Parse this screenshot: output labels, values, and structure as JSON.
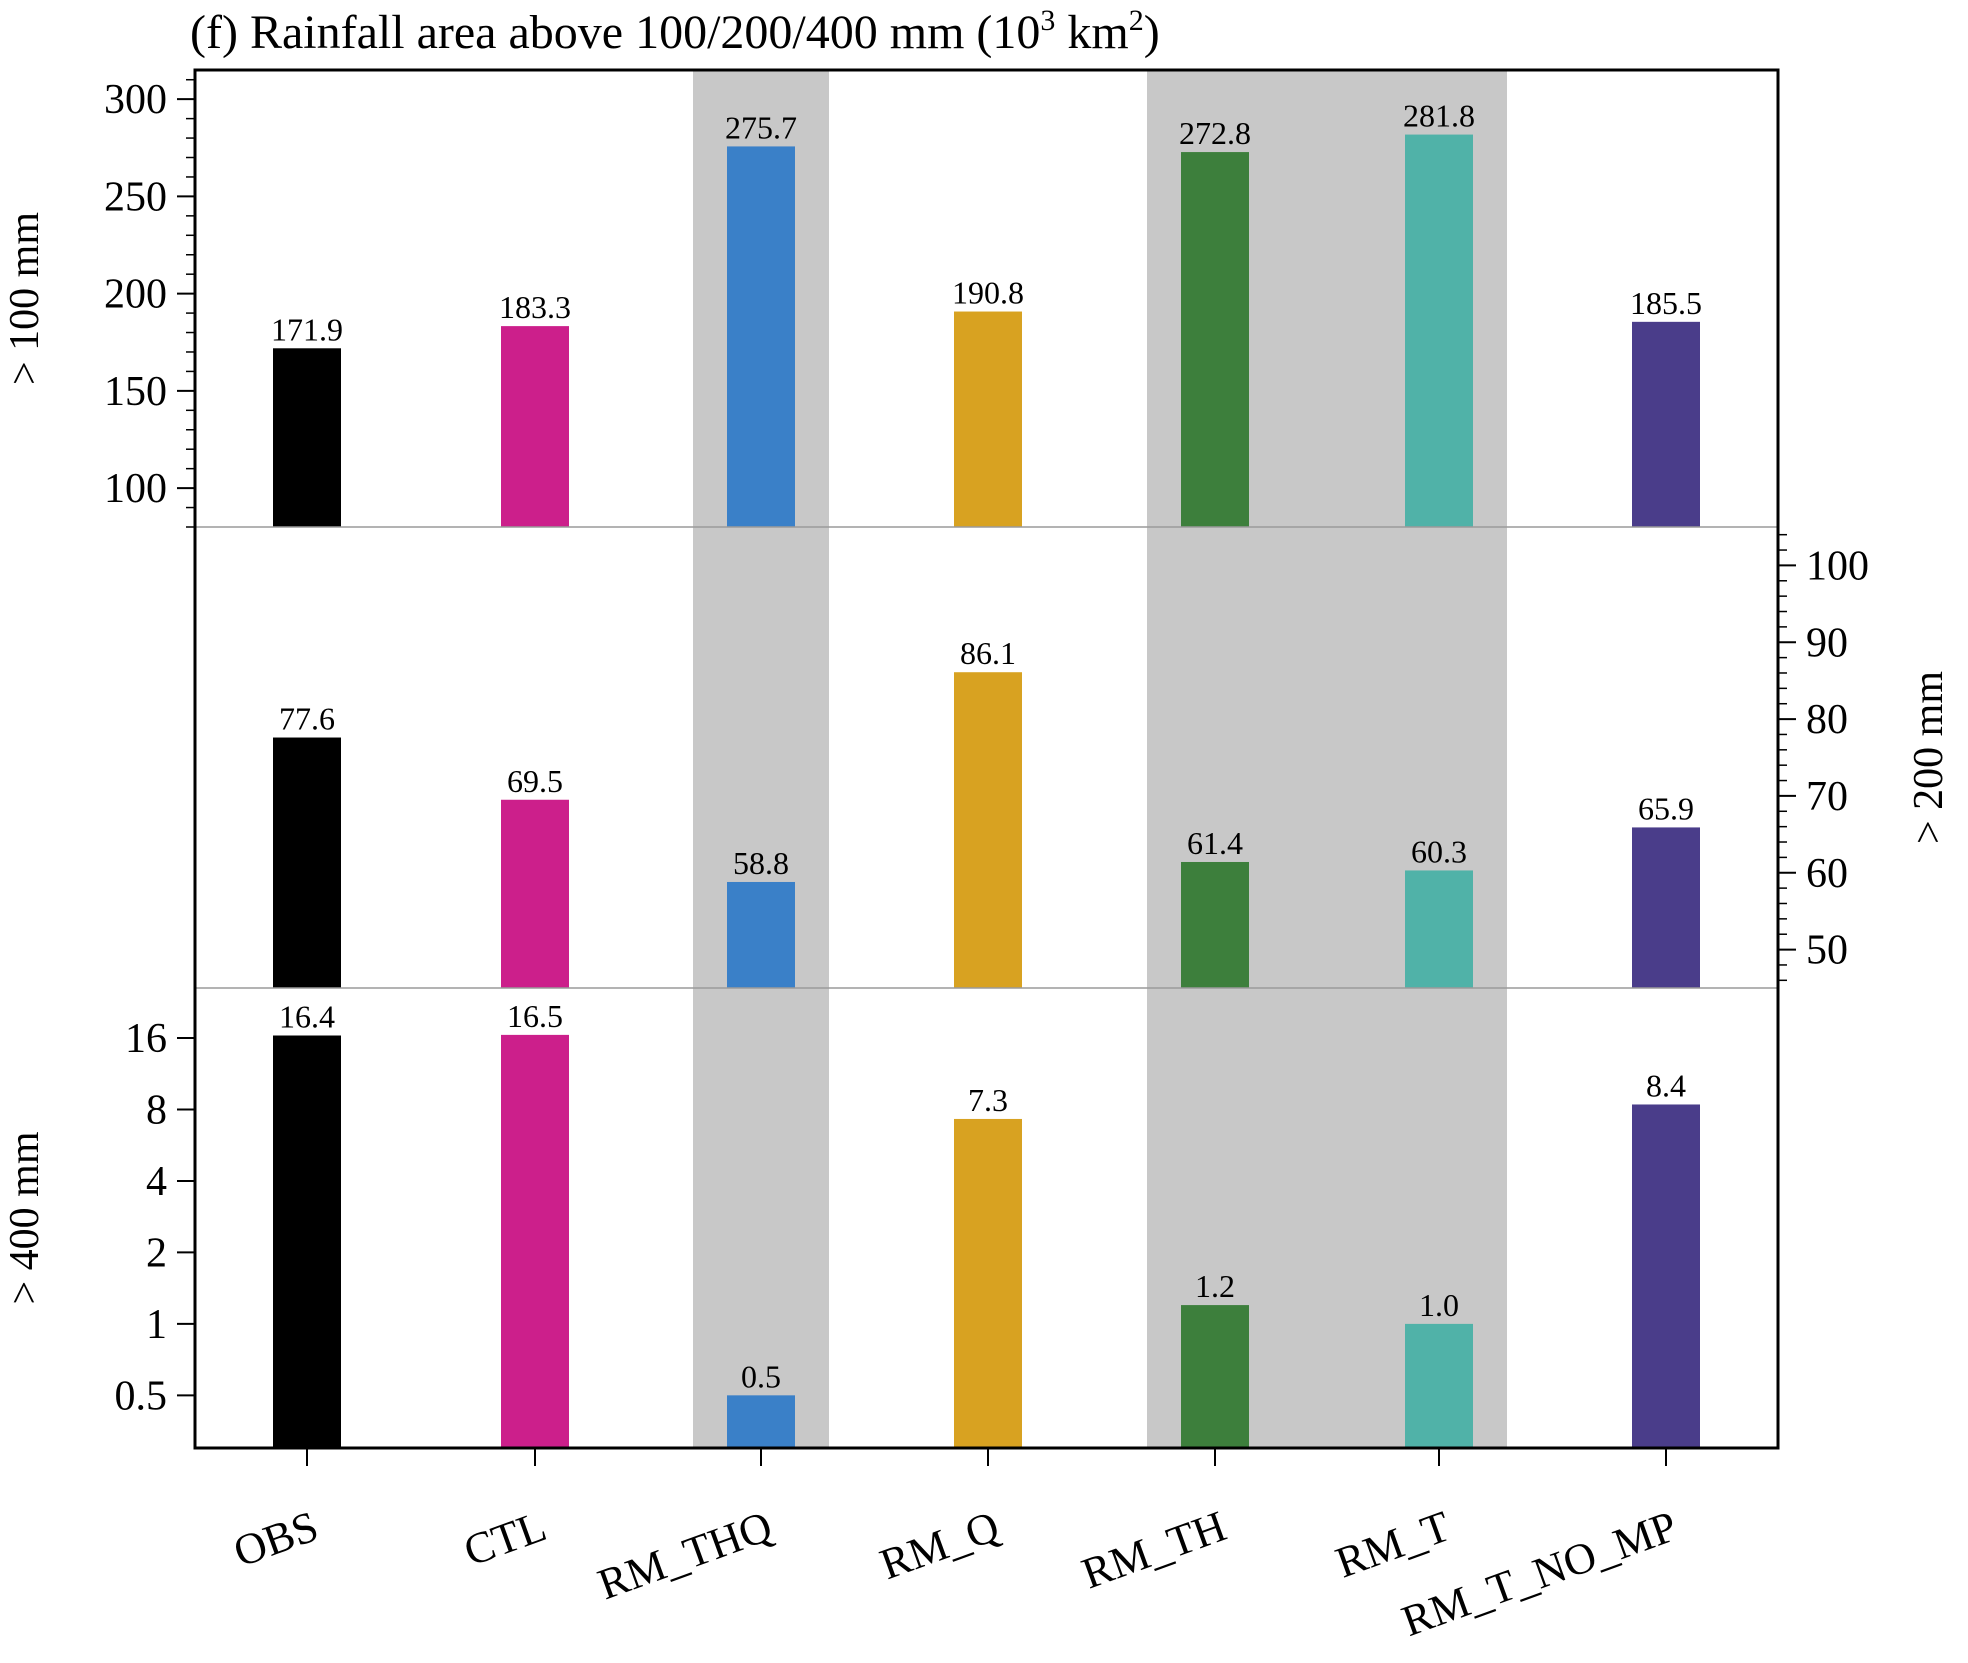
{
  "title": {
    "prefix": "(f) Rainfall area above 100/200/400 mm (10",
    "sup1": "3",
    "mid": " km",
    "sup2": "2",
    "suffix": ")"
  },
  "colors": {
    "OBS": "#000000",
    "CTL": "#cc1f8b",
    "RM_THQ": "#3a80c8",
    "RM_Q": "#d8a221",
    "RM_TH": "#3d7f3c",
    "RM_T": "#50b2a8",
    "RM_T_NO_MP": "#4a3d8a",
    "shade": "#c8c8c8"
  },
  "chart_data": [
    {
      "type": "bar",
      "panel": "top",
      "ylabel": "> 100 mm",
      "axis_side": "left",
      "ylim": [
        80,
        315
      ],
      "yticks": [
        100,
        150,
        200,
        250,
        300
      ],
      "categories": [
        "OBS",
        "CTL",
        "RM_THQ",
        "RM_Q",
        "RM_TH",
        "RM_T",
        "RM_T_NO_MP"
      ],
      "values": [
        171.9,
        183.3,
        275.7,
        190.8,
        272.8,
        281.8,
        185.5
      ],
      "labels": [
        "171.9",
        "183.3",
        "275.7",
        "190.8",
        "272.8",
        "281.8",
        "185.5"
      ]
    },
    {
      "type": "bar",
      "panel": "middle",
      "ylabel": "> 200 mm",
      "axis_side": "right",
      "ylim": [
        45,
        105
      ],
      "yticks": [
        50,
        60,
        70,
        80,
        90,
        100
      ],
      "categories": [
        "OBS",
        "CTL",
        "RM_THQ",
        "RM_Q",
        "RM_TH",
        "RM_T",
        "RM_T_NO_MP"
      ],
      "values": [
        77.6,
        69.5,
        58.8,
        86.1,
        61.4,
        60.3,
        65.9
      ],
      "labels": [
        "77.6",
        "69.5",
        "58.8",
        "86.1",
        "61.4",
        "60.3",
        "65.9"
      ]
    },
    {
      "type": "bar",
      "panel": "bottom",
      "ylabel": "> 400 mm",
      "axis_side": "left",
      "log_scale": true,
      "ylim": [
        0.3,
        26
      ],
      "yticks": [
        0.5,
        1,
        2,
        4,
        8,
        16
      ],
      "ytick_labels": [
        "0.5",
        "1",
        "2",
        "4",
        "8",
        "16"
      ],
      "categories": [
        "OBS",
        "CTL",
        "RM_THQ",
        "RM_Q",
        "RM_TH",
        "RM_T",
        "RM_T_NO_MP"
      ],
      "values": [
        16.4,
        16.5,
        0.5,
        7.3,
        1.2,
        1.0,
        8.4
      ],
      "labels": [
        "16.4",
        "16.5",
        "0.5",
        "7.3",
        "1.2",
        "1.0",
        "8.4"
      ]
    }
  ],
  "shaded_groups": [
    [
      "RM_THQ"
    ],
    [
      "RM_TH",
      "RM_T"
    ]
  ]
}
